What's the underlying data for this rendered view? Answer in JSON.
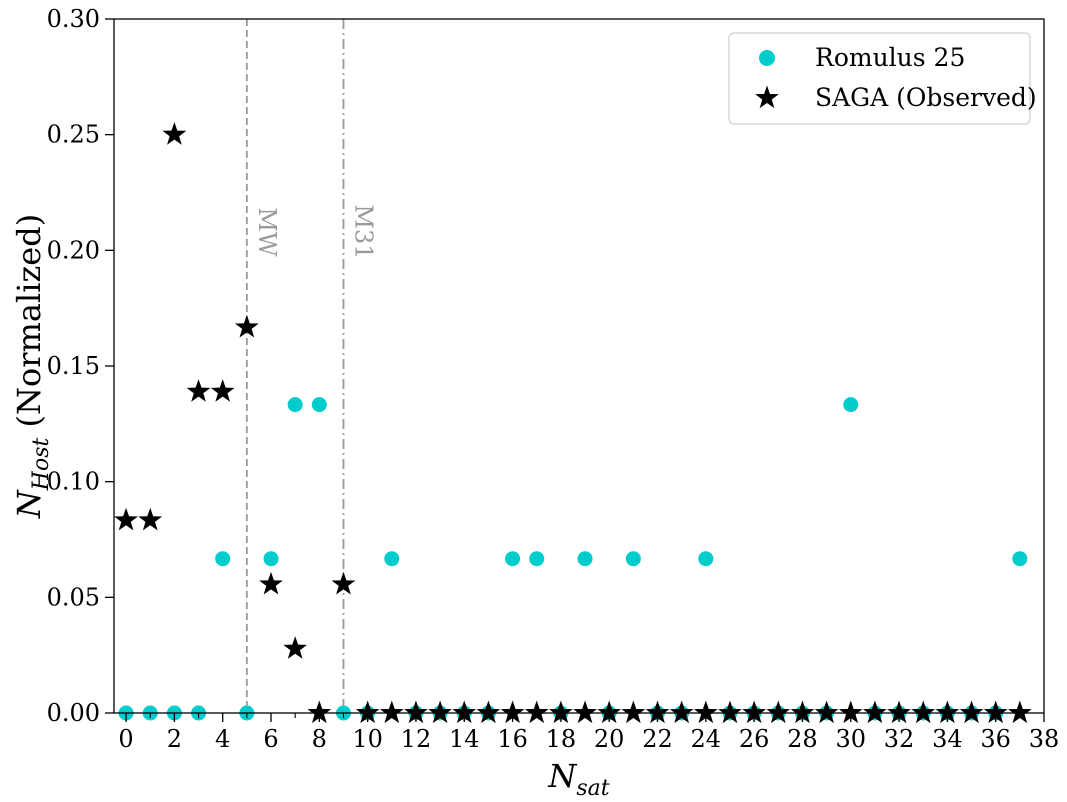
{
  "chart_data": {
    "type": "scatter",
    "xlabel_main": "N",
    "xlabel_sub": "sat",
    "ylabel_main": "N",
    "ylabel_sub": "Host",
    "ylabel_suffix": " (Normalized)",
    "xlim": [
      -0.5,
      38
    ],
    "ylim": [
      0,
      0.3
    ],
    "x_ticks": [
      0,
      2,
      4,
      6,
      8,
      10,
      12,
      14,
      16,
      18,
      20,
      22,
      24,
      26,
      28,
      30,
      32,
      34,
      36,
      38
    ],
    "x_tick_labels": [
      "0",
      "2",
      "4",
      "6",
      "8",
      "10",
      "12",
      "14",
      "16",
      "18",
      "20",
      "22",
      "24",
      "26",
      "28",
      "30",
      "32",
      "34",
      "36",
      "38"
    ],
    "y_ticks": [
      0,
      0.05,
      0.1,
      0.15,
      0.2,
      0.25,
      0.3
    ],
    "y_tick_labels": [
      "0.00",
      "0.05",
      "0.10",
      "0.15",
      "0.20",
      "0.25",
      "0.30"
    ],
    "grid": false,
    "legend_position": "top-right",
    "vertical_lines": [
      {
        "x": 5,
        "label": "MW",
        "style": "dashed",
        "color": "#9a9a9a"
      },
      {
        "x": 9,
        "label": "M31",
        "style": "dashdot",
        "color": "#9a9a9a"
      }
    ],
    "series": [
      {
        "name": "Romulus 25",
        "marker": "circle",
        "color": "#00cccc",
        "x": [
          0,
          1,
          2,
          3,
          4,
          5,
          6,
          7,
          8,
          9,
          10,
          11,
          12,
          13,
          14,
          15,
          16,
          17,
          18,
          19,
          20,
          21,
          22,
          23,
          24,
          25,
          26,
          27,
          28,
          29,
          30,
          31,
          32,
          33,
          34,
          35,
          36,
          37
        ],
        "y": [
          0,
          0,
          0,
          0,
          0.0667,
          0,
          0.0667,
          0.1333,
          0.1333,
          0,
          0,
          0.0667,
          0,
          0,
          0,
          0,
          0.0667,
          0.0667,
          0,
          0.0667,
          0,
          0.0667,
          0,
          0,
          0.0667,
          0,
          0,
          0,
          0,
          0,
          0.1333,
          0,
          0,
          0,
          0,
          0,
          0,
          0.0667
        ]
      },
      {
        "name": "SAGA (Observed)",
        "marker": "star",
        "color": "#000000",
        "x": [
          0,
          1,
          2,
          3,
          4,
          5,
          6,
          7,
          8,
          9,
          10,
          11,
          12,
          13,
          14,
          15,
          16,
          17,
          18,
          19,
          20,
          21,
          22,
          23,
          24,
          25,
          26,
          27,
          28,
          29,
          30,
          31,
          32,
          33,
          34,
          35,
          36,
          37
        ],
        "y": [
          0.0833,
          0.0833,
          0.25,
          0.1389,
          0.1389,
          0.1667,
          0.0556,
          0.0278,
          0,
          0.0556,
          0,
          0,
          0,
          0,
          0,
          0,
          0,
          0,
          0,
          0,
          0,
          0,
          0,
          0,
          0,
          0,
          0,
          0,
          0,
          0,
          0,
          0,
          0,
          0,
          0,
          0,
          0,
          0
        ]
      }
    ]
  }
}
